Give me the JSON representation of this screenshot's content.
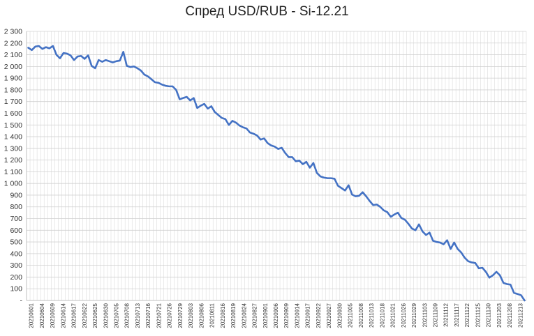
{
  "chart_data": {
    "type": "line",
    "title": "Спред USD/RUB - Si-12.21",
    "xlabel": "",
    "ylabel": "",
    "ylim": [
      0,
      2300
    ],
    "yticks": [
      "-",
      "100",
      "200",
      "300",
      "400",
      "500",
      "600",
      "700",
      "800",
      "900",
      "1 000",
      "1 100",
      "1 200",
      "1 300",
      "1 400",
      "1 500",
      "1 600",
      "1 700",
      "1 800",
      "1 900",
      "2 000",
      "2 100",
      "2 200",
      "2 300"
    ],
    "xtick_labels": [
      "20210601",
      "20210604",
      "20210609",
      "20210614",
      "20210617",
      "20210622",
      "20210625",
      "20210630",
      "20210705",
      "20210708",
      "20210713",
      "20210716",
      "20210721",
      "20210726",
      "20210729",
      "20210803",
      "20210806",
      "20210811",
      "20210816",
      "20210819",
      "20210824",
      "20210827",
      "20210901",
      "20210906",
      "20210909",
      "20210914",
      "20210917",
      "20210922",
      "20210927",
      "20210930",
      "20211005",
      "20211008",
      "20211013",
      "20211018",
      "20211021",
      "20211026",
      "20211029",
      "20211103",
      "20211109",
      "20211112",
      "20211117",
      "20211122",
      "20211125",
      "20211130",
      "20211203",
      "20211208",
      "20211213"
    ],
    "gridlines": true,
    "legend": "none",
    "line_color": "#4472c4",
    "series": [
      {
        "values": [
          2160,
          2140,
          2170,
          2175,
          2150,
          2165,
          2155,
          2175,
          2100,
          2070,
          2115,
          2110,
          2095,
          2055,
          2085,
          2090,
          2065,
          2095,
          2005,
          1985,
          2055,
          2040,
          2055,
          2045,
          2035,
          2045,
          2050,
          2125,
          2005,
          1995,
          2000,
          1985,
          1965,
          1930,
          1915,
          1890,
          1865,
          1860,
          1845,
          1835,
          1830,
          1830,
          1800,
          1720,
          1730,
          1740,
          1710,
          1730,
          1645,
          1665,
          1680,
          1640,
          1660,
          1610,
          1585,
          1560,
          1550,
          1500,
          1535,
          1520,
          1495,
          1480,
          1470,
          1435,
          1425,
          1410,
          1375,
          1385,
          1345,
          1325,
          1315,
          1295,
          1305,
          1260,
          1225,
          1225,
          1190,
          1195,
          1165,
          1185,
          1135,
          1175,
          1090,
          1060,
          1050,
          1045,
          1045,
          1040,
          980,
          960,
          940,
          985,
          905,
          890,
          895,
          925,
          890,
          850,
          815,
          820,
          800,
          770,
          755,
          715,
          735,
          750,
          705,
          690,
          655,
          615,
          600,
          650,
          590,
          560,
          580,
          510,
          500,
          495,
          480,
          515,
          440,
          495,
          440,
          410,
          365,
          335,
          325,
          320,
          275,
          280,
          245,
          195,
          215,
          245,
          215,
          150,
          140,
          135,
          65,
          55,
          45,
          0
        ]
      }
    ]
  }
}
